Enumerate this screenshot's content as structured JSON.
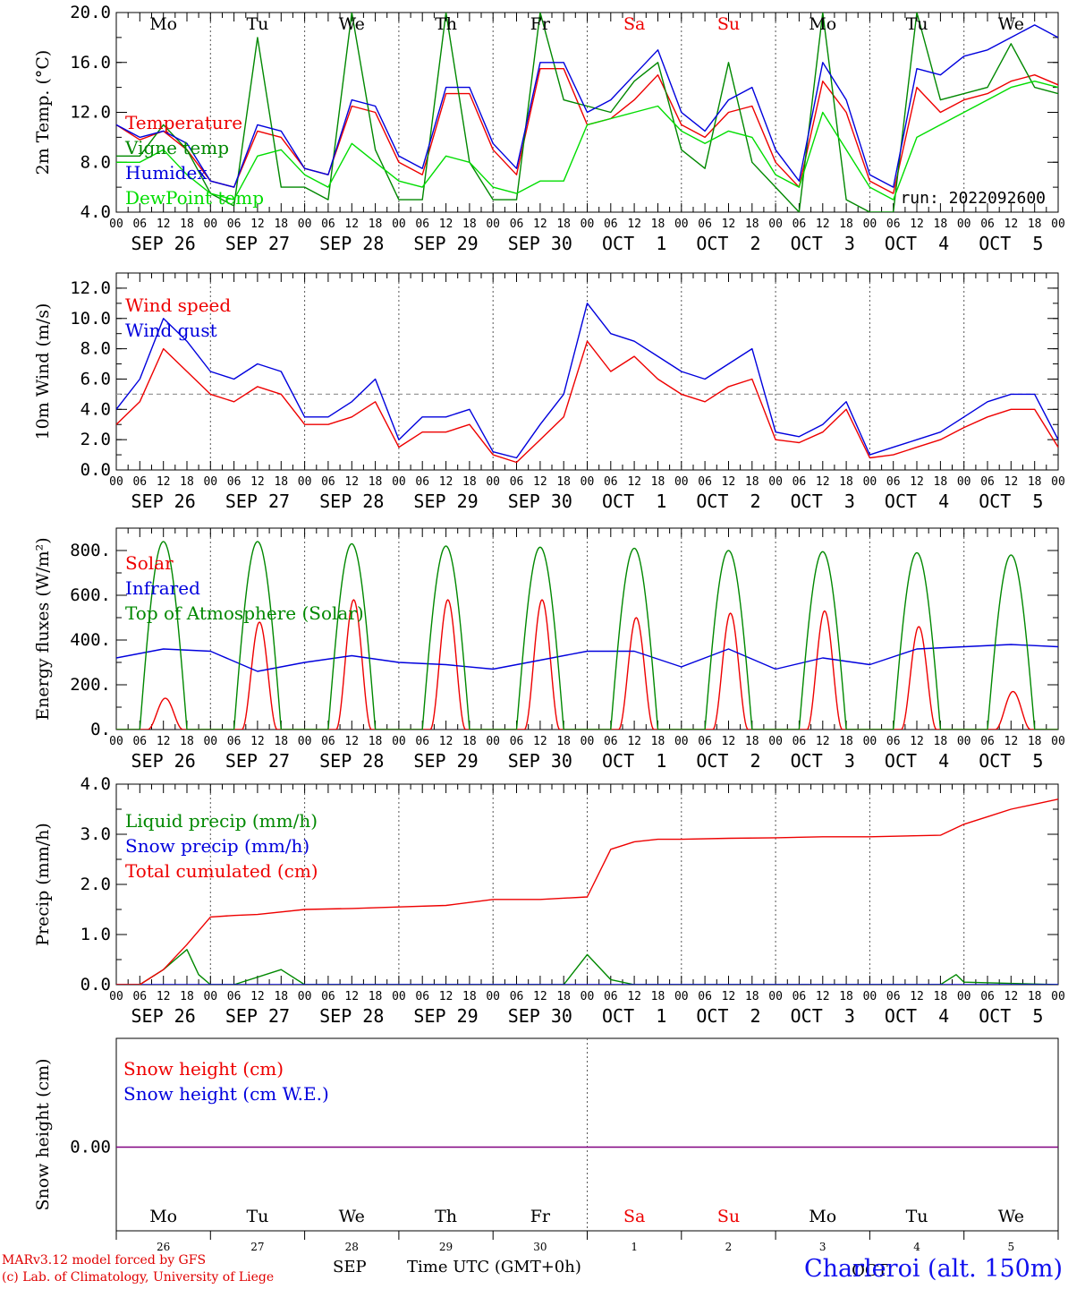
{
  "palette": {
    "red": "#ee0000",
    "blue": "#0000dd",
    "dkgreen": "#008800",
    "green": "#00dd00",
    "purple": "#800080",
    "grid": "#555555",
    "ref": "#999999"
  },
  "run_label": "run: 2022092600",
  "hour_ticks": [
    "00",
    "06",
    "12",
    "18"
  ],
  "hour_end": "00",
  "dates": [
    "SEP 26",
    "SEP 27",
    "SEP 28",
    "SEP 29",
    "SEP 30",
    "OCT  1",
    "OCT  2",
    "OCT  3",
    "OCT  4",
    "OCT  5"
  ],
  "weekdays": [
    {
      "label": "Mo",
      "weekend": false
    },
    {
      "label": "Tu",
      "weekend": false
    },
    {
      "label": "We",
      "weekend": false
    },
    {
      "label": "Th",
      "weekend": false
    },
    {
      "label": "Fr",
      "weekend": false
    },
    {
      "label": "Sa",
      "weekend": true
    },
    {
      "label": "Su",
      "weekend": true
    },
    {
      "label": "Mo",
      "weekend": false
    },
    {
      "label": "Tu",
      "weekend": false
    },
    {
      "label": "We",
      "weekend": false
    }
  ],
  "day_numbers": [
    "26",
    "27",
    "28",
    "29",
    "30",
    "1",
    "2",
    "3",
    "4",
    "5"
  ],
  "footer": {
    "model": "MARv3.12 model forced by GFS",
    "lab": "(c) Lab. of Climatology, University of Liege",
    "month_sep": "SEP",
    "month_oct": "OCT",
    "time_label": "Time UTC (GMT+0h)",
    "station": "Charleroi (alt. 150m)"
  },
  "chart_data": [
    {
      "type": "line",
      "ylabel": "2m Temp. (°C)",
      "ylim": [
        4,
        20
      ],
      "yticks": [
        "4.0",
        "8.0",
        "12.0",
        "16.0",
        "20.0"
      ],
      "x_unit": "hours since SEP 26 00 UTC",
      "series": [
        {
          "name": "Temperature",
          "color": "red",
          "x": [
            0,
            6,
            12,
            18,
            24,
            30,
            36,
            42,
            48,
            54,
            60,
            66,
            72,
            78,
            84,
            90,
            96,
            102,
            108,
            114,
            120,
            126,
            132,
            138,
            144,
            150,
            156,
            162,
            168,
            174,
            180,
            186,
            192,
            198,
            204,
            210,
            216,
            222,
            228,
            234,
            240
          ],
          "y": [
            11,
            9.8,
            10.5,
            9,
            6.5,
            6,
            10.5,
            10,
            7.5,
            7,
            12.5,
            12,
            8,
            7,
            13.5,
            13.5,
            9,
            7,
            15.5,
            15.5,
            11,
            11.5,
            13,
            15,
            11,
            10,
            12,
            12.5,
            8,
            6,
            14.5,
            12,
            6.5,
            5.5,
            14,
            12,
            13,
            13.5,
            14.5,
            15,
            14.2
          ]
        },
        {
          "name": "Vigne temp",
          "color": "dkgreen",
          "x": [
            0,
            6,
            12,
            18,
            24,
            30,
            36,
            42,
            48,
            54,
            60,
            66,
            72,
            78,
            84,
            90,
            96,
            102,
            108,
            114,
            120,
            126,
            132,
            138,
            144,
            150,
            156,
            162,
            168,
            174,
            180,
            186,
            192,
            198,
            204,
            210,
            216,
            222,
            228,
            234,
            240
          ],
          "y": [
            8.5,
            8.5,
            11,
            9,
            5.5,
            4.5,
            18,
            6,
            6,
            5,
            20,
            9,
            5,
            5,
            20,
            8,
            5,
            5,
            20,
            13,
            12.5,
            12,
            14.5,
            16,
            9,
            7.5,
            16,
            8,
            6,
            4,
            20,
            5,
            4,
            4,
            20,
            13,
            13.5,
            14,
            17.5,
            14,
            13.5
          ]
        },
        {
          "name": "Humidex",
          "color": "blue",
          "x": [
            0,
            6,
            12,
            18,
            24,
            30,
            36,
            42,
            48,
            54,
            60,
            66,
            72,
            78,
            84,
            90,
            96,
            102,
            108,
            114,
            120,
            126,
            132,
            138,
            144,
            150,
            156,
            162,
            168,
            174,
            180,
            186,
            192,
            198,
            204,
            210,
            216,
            222,
            228,
            234,
            240
          ],
          "y": [
            11,
            10,
            10.5,
            9.5,
            6.5,
            6,
            11,
            10.5,
            7.5,
            7,
            13,
            12.5,
            8.5,
            7.5,
            14,
            14,
            9.5,
            7.5,
            16,
            16,
            12,
            13,
            15,
            17,
            12,
            10.5,
            13,
            14,
            9,
            6.5,
            16,
            13,
            7,
            6,
            15.5,
            15,
            16.5,
            17,
            18,
            19,
            18
          ]
        },
        {
          "name": "DewPoint temp",
          "color": "green",
          "x": [
            0,
            6,
            12,
            18,
            24,
            30,
            36,
            42,
            48,
            54,
            60,
            66,
            72,
            78,
            84,
            90,
            96,
            102,
            108,
            114,
            120,
            126,
            132,
            138,
            144,
            150,
            156,
            162,
            168,
            174,
            180,
            186,
            192,
            198,
            204,
            210,
            216,
            222,
            228,
            234,
            240
          ],
          "y": [
            8,
            8,
            9,
            7,
            5.5,
            5,
            8.5,
            9,
            7,
            6,
            9.5,
            8,
            6.5,
            6,
            8.5,
            8,
            6,
            5.5,
            6.5,
            6.5,
            11,
            11.5,
            12,
            12.5,
            10.5,
            9.5,
            10.5,
            10,
            7,
            6,
            12,
            9,
            6,
            5,
            10,
            11,
            12,
            13,
            14,
            14.5,
            14
          ]
        }
      ]
    },
    {
      "type": "line",
      "ylabel": "10m Wind (m/s)",
      "ylim": [
        0,
        13
      ],
      "yticks": [
        "0.0",
        "2.0",
        "4.0",
        "6.0",
        "8.0",
        "10.0",
        "12.0"
      ],
      "reference_line": 5,
      "series": [
        {
          "name": "Wind speed",
          "color": "red",
          "x": [
            0,
            6,
            12,
            18,
            24,
            30,
            36,
            42,
            48,
            54,
            60,
            66,
            72,
            78,
            84,
            90,
            96,
            102,
            108,
            114,
            120,
            126,
            132,
            138,
            144,
            150,
            156,
            162,
            168,
            174,
            180,
            186,
            192,
            198,
            204,
            210,
            216,
            222,
            228,
            234,
            240
          ],
          "y": [
            3,
            4.5,
            8,
            6.5,
            5,
            4.5,
            5.5,
            5,
            3,
            3,
            3.5,
            4.5,
            1.5,
            2.5,
            2.5,
            3,
            1,
            0.5,
            2,
            3.5,
            8.5,
            6.5,
            7.5,
            6,
            5,
            4.5,
            5.5,
            6,
            2,
            1.8,
            2.5,
            4,
            0.8,
            1,
            1.5,
            2,
            2.8,
            3.5,
            4,
            4,
            1.5
          ]
        },
        {
          "name": "Wind gust",
          "color": "blue",
          "x": [
            0,
            6,
            12,
            18,
            24,
            30,
            36,
            42,
            48,
            54,
            60,
            66,
            72,
            78,
            84,
            90,
            96,
            102,
            108,
            114,
            120,
            126,
            132,
            138,
            144,
            150,
            156,
            162,
            168,
            174,
            180,
            186,
            192,
            198,
            204,
            210,
            216,
            222,
            228,
            234,
            240
          ],
          "y": [
            4,
            6,
            10,
            8.5,
            6.5,
            6,
            7,
            6.5,
            3.5,
            3.5,
            4.5,
            6,
            2,
            3.5,
            3.5,
            4,
            1.2,
            0.8,
            3,
            5,
            11,
            9,
            8.5,
            7.5,
            6.5,
            6,
            7,
            8,
            2.5,
            2.2,
            3,
            4.5,
            1,
            1.5,
            2,
            2.5,
            3.5,
            4.5,
            5,
            5,
            2
          ]
        }
      ]
    },
    {
      "type": "line",
      "ylabel": "Energy fluxes (W/m²)",
      "ylim": [
        0,
        900
      ],
      "yticks": [
        "0.",
        "200.",
        "400.",
        "600.",
        "800."
      ],
      "series": [
        {
          "name": "Solar",
          "color": "red",
          "peaks": [
            140,
            480,
            580,
            580,
            580,
            500,
            520,
            530,
            460,
            170
          ]
        },
        {
          "name": "Infrared",
          "color": "blue",
          "x": [
            0,
            12,
            24,
            36,
            48,
            60,
            72,
            84,
            96,
            108,
            120,
            132,
            144,
            156,
            168,
            180,
            192,
            204,
            216,
            228,
            240
          ],
          "y": [
            320,
            360,
            350,
            260,
            300,
            330,
            300,
            290,
            270,
            310,
            350,
            350,
            280,
            360,
            270,
            320,
            290,
            360,
            370,
            380,
            370
          ]
        },
        {
          "name": "Top of Atmosphere (Solar)",
          "color": "dkgreen",
          "peaks": [
            840,
            840,
            830,
            820,
            815,
            810,
            800,
            795,
            790,
            780
          ]
        }
      ]
    },
    {
      "type": "line",
      "ylabel": "Precip (mm/h)",
      "ylim": [
        0,
        4
      ],
      "yticks": [
        "0.0",
        "1.0",
        "2.0",
        "3.0",
        "4.0"
      ],
      "series": [
        {
          "name": "Liquid precip (mm/h)",
          "color": "dkgreen",
          "x": [
            0,
            6,
            12,
            15,
            18,
            21,
            24,
            30,
            42,
            48,
            72,
            96,
            114,
            120,
            126,
            132,
            144,
            192,
            210,
            214,
            216,
            240
          ],
          "y": [
            0,
            0,
            0.3,
            0.5,
            0.7,
            0.2,
            0,
            0,
            0.3,
            0,
            0,
            0,
            0,
            0.6,
            0.1,
            0,
            0,
            0,
            0,
            0.2,
            0.05,
            0
          ]
        },
        {
          "name": "Snow precip (mm/h)",
          "color": "blue",
          "x": [
            0,
            240
          ],
          "y": [
            0,
            0
          ]
        },
        {
          "name": "Total cumulated (cm)",
          "color": "red",
          "x": [
            0,
            6,
            12,
            18,
            24,
            30,
            36,
            48,
            60,
            72,
            84,
            96,
            108,
            120,
            126,
            132,
            138,
            144,
            156,
            168,
            180,
            192,
            210,
            216,
            222,
            228,
            234,
            240
          ],
          "y": [
            0,
            0,
            0.3,
            0.8,
            1.35,
            1.38,
            1.4,
            1.5,
            1.52,
            1.55,
            1.58,
            1.7,
            1.7,
            1.75,
            2.7,
            2.85,
            2.9,
            2.9,
            2.92,
            2.93,
            2.95,
            2.95,
            2.98,
            3.2,
            3.35,
            3.5,
            3.6,
            3.7
          ]
        }
      ]
    },
    {
      "type": "line",
      "ylabel": "Snow height (cm)",
      "yticks": [
        "0.00"
      ],
      "series": [
        {
          "name": "Snow height (cm)",
          "color": "red",
          "x": [
            0,
            240
          ],
          "y": [
            0,
            0
          ]
        },
        {
          "name": "Snow height (cm W.E.)",
          "color": "blue",
          "x": [
            0,
            240
          ],
          "y": [
            0,
            0
          ]
        }
      ]
    }
  ]
}
